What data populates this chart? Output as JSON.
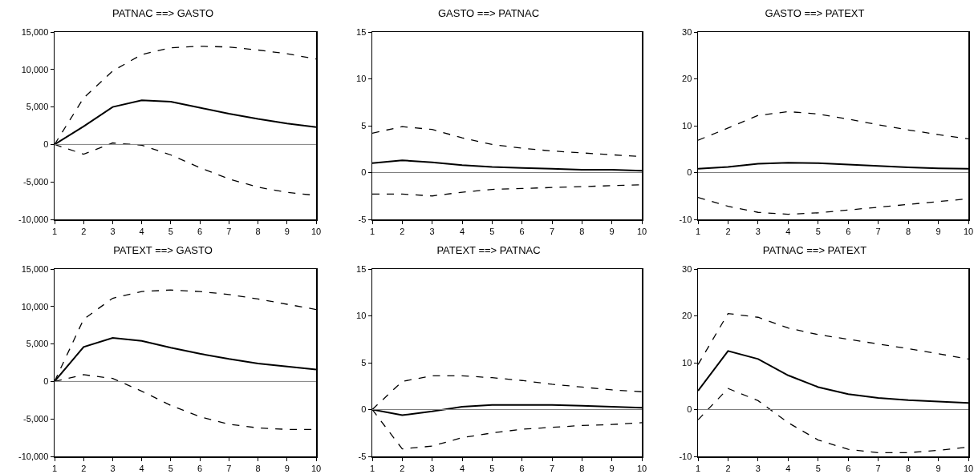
{
  "chart_data": [
    {
      "type": "line",
      "title": "PATNAC ==> GASTO",
      "x": [
        1,
        2,
        3,
        4,
        5,
        6,
        7,
        8,
        9,
        10
      ],
      "xlim": [
        1,
        10
      ],
      "xticks": [
        1,
        2,
        3,
        4,
        5,
        6,
        7,
        8,
        9,
        10
      ],
      "ylim": [
        -10000,
        15000
      ],
      "yticks": [
        {
          "value": -10000,
          "label": "-10,000"
        },
        {
          "value": -5000,
          "label": "-5,000"
        },
        0,
        {
          "value": 5000,
          "label": "5,000"
        },
        {
          "value": 10000,
          "label": "10,000"
        },
        {
          "value": 15000,
          "label": "15,000"
        }
      ],
      "grid": false,
      "ref_lines": [
        {
          "axis": "y",
          "value": 0,
          "color": "#808080"
        }
      ],
      "series": [
        {
          "color": "#000000",
          "line_style": "solid",
          "values": [
            0,
            2400,
            5000,
            5900,
            5700,
            4900,
            4100,
            3400,
            2800,
            2300
          ]
        },
        {
          "color": "#000000",
          "line_style": "dashed",
          "values": [
            0,
            6200,
            9800,
            12000,
            12900,
            13100,
            13000,
            12600,
            12100,
            11400
          ]
        },
        {
          "color": "#000000",
          "line_style": "dashed",
          "values": [
            0,
            -1300,
            200,
            -100,
            -1400,
            -3100,
            -4600,
            -5700,
            -6400,
            -6800
          ]
        }
      ]
    },
    {
      "type": "line",
      "title": "GASTO ==> PATNAC",
      "x": [
        1,
        2,
        3,
        4,
        5,
        6,
        7,
        8,
        9,
        10
      ],
      "xlim": [
        1,
        10
      ],
      "xticks": [
        1,
        2,
        3,
        4,
        5,
        6,
        7,
        8,
        9,
        10
      ],
      "ylim": [
        -5,
        15
      ],
      "yticks": [
        -5,
        0,
        5,
        10,
        15
      ],
      "grid": false,
      "ref_lines": [
        {
          "axis": "y",
          "value": 0,
          "color": "#808080"
        }
      ],
      "series": [
        {
          "color": "#000000",
          "line_style": "solid",
          "values": [
            1.0,
            1.3,
            1.1,
            0.8,
            0.6,
            0.5,
            0.4,
            0.3,
            0.3,
            0.2
          ]
        },
        {
          "color": "#000000",
          "line_style": "dashed",
          "values": [
            4.2,
            4.9,
            4.6,
            3.7,
            3.0,
            2.6,
            2.3,
            2.1,
            1.9,
            1.7
          ]
        },
        {
          "color": "#000000",
          "line_style": "dashed",
          "values": [
            -2.3,
            -2.3,
            -2.5,
            -2.1,
            -1.8,
            -1.7,
            -1.6,
            -1.5,
            -1.4,
            -1.3
          ]
        }
      ]
    },
    {
      "type": "line",
      "title": "GASTO ==> PATEXT",
      "x": [
        1,
        2,
        3,
        4,
        5,
        6,
        7,
        8,
        9,
        10
      ],
      "xlim": [
        1,
        10
      ],
      "xticks": [
        1,
        2,
        3,
        4,
        5,
        6,
        7,
        8,
        9,
        10
      ],
      "ylim": [
        -10,
        30
      ],
      "yticks": [
        -10,
        0,
        10,
        20,
        30
      ],
      "grid": false,
      "ref_lines": [
        {
          "axis": "y",
          "value": 0,
          "color": "#808080"
        }
      ],
      "series": [
        {
          "color": "#000000",
          "line_style": "solid",
          "values": [
            0.8,
            1.2,
            1.9,
            2.1,
            2.0,
            1.7,
            1.4,
            1.1,
            0.9,
            0.8
          ]
        },
        {
          "color": "#000000",
          "line_style": "dashed",
          "values": [
            6.9,
            9.5,
            12.2,
            13.0,
            12.5,
            11.4,
            10.2,
            9.1,
            8.1,
            7.2
          ]
        },
        {
          "color": "#000000",
          "line_style": "dashed",
          "values": [
            -5.3,
            -7.2,
            -8.5,
            -8.9,
            -8.6,
            -8.0,
            -7.4,
            -6.8,
            -6.2,
            -5.6
          ]
        }
      ]
    },
    {
      "type": "line",
      "title": "PATEXT ==> GASTO",
      "x": [
        1,
        2,
        3,
        4,
        5,
        6,
        7,
        8,
        9,
        10
      ],
      "xlim": [
        1,
        10
      ],
      "xticks": [
        1,
        2,
        3,
        4,
        5,
        6,
        7,
        8,
        9,
        10
      ],
      "ylim": [
        -10000,
        15000
      ],
      "yticks": [
        {
          "value": -10000,
          "label": "-10,000"
        },
        {
          "value": -5000,
          "label": "-5,000"
        },
        0,
        {
          "value": 5000,
          "label": "5,000"
        },
        {
          "value": 10000,
          "label": "10,000"
        },
        {
          "value": 15000,
          "label": "15,000"
        }
      ],
      "grid": false,
      "ref_lines": [
        {
          "axis": "y",
          "value": 0,
          "color": "#808080"
        }
      ],
      "series": [
        {
          "color": "#000000",
          "line_style": "solid",
          "values": [
            0,
            4600,
            5800,
            5400,
            4500,
            3700,
            3000,
            2400,
            2000,
            1600
          ]
        },
        {
          "color": "#000000",
          "line_style": "dashed",
          "values": [
            0,
            8300,
            11100,
            12000,
            12200,
            12000,
            11600,
            11000,
            10300,
            9600
          ]
        },
        {
          "color": "#000000",
          "line_style": "dashed",
          "values": [
            0,
            900,
            400,
            -1300,
            -3200,
            -4700,
            -5700,
            -6200,
            -6400,
            -6400
          ]
        }
      ]
    },
    {
      "type": "line",
      "title": "PATEXT ==> PATNAC",
      "x": [
        1,
        2,
        3,
        4,
        5,
        6,
        7,
        8,
        9,
        10
      ],
      "xlim": [
        1,
        10
      ],
      "xticks": [
        1,
        2,
        3,
        4,
        5,
        6,
        7,
        8,
        9,
        10
      ],
      "ylim": [
        -5,
        15
      ],
      "yticks": [
        -5,
        0,
        5,
        10,
        15
      ],
      "grid": false,
      "ref_lines": [
        {
          "axis": "y",
          "value": 0,
          "color": "#808080"
        }
      ],
      "series": [
        {
          "color": "#000000",
          "line_style": "solid",
          "values": [
            0,
            -0.6,
            -0.2,
            0.3,
            0.5,
            0.5,
            0.5,
            0.4,
            0.3,
            0.2
          ]
        },
        {
          "color": "#000000",
          "line_style": "dashed",
          "values": [
            0,
            3.0,
            3.6,
            3.6,
            3.4,
            3.1,
            2.7,
            2.4,
            2.1,
            1.9
          ]
        },
        {
          "color": "#000000",
          "line_style": "dashed",
          "values": [
            0,
            -4.2,
            -3.9,
            -3.0,
            -2.5,
            -2.1,
            -1.9,
            -1.7,
            -1.6,
            -1.4
          ]
        }
      ]
    },
    {
      "type": "line",
      "title": "PATNAC ==> PATEXT",
      "x": [
        1,
        2,
        3,
        4,
        5,
        6,
        7,
        8,
        9,
        10
      ],
      "xlim": [
        1,
        10
      ],
      "xticks": [
        1,
        2,
        3,
        4,
        5,
        6,
        7,
        8,
        9,
        10
      ],
      "ylim": [
        -10,
        30
      ],
      "yticks": [
        -10,
        0,
        10,
        20,
        30
      ],
      "grid": false,
      "ref_lines": [
        {
          "axis": "y",
          "value": 0,
          "color": "#808080"
        }
      ],
      "series": [
        {
          "color": "#000000",
          "line_style": "solid",
          "values": [
            4.0,
            12.5,
            10.8,
            7.3,
            4.8,
            3.3,
            2.5,
            2.0,
            1.7,
            1.4
          ]
        },
        {
          "color": "#000000",
          "line_style": "dashed",
          "values": [
            9.6,
            20.5,
            19.7,
            17.4,
            16.0,
            15.0,
            14.0,
            13.0,
            11.9,
            10.8
          ]
        },
        {
          "color": "#000000",
          "line_style": "dashed",
          "values": [
            -2.2,
            4.5,
            1.9,
            -2.8,
            -6.5,
            -8.5,
            -9.2,
            -9.2,
            -8.7,
            -8.0
          ]
        }
      ]
    }
  ]
}
